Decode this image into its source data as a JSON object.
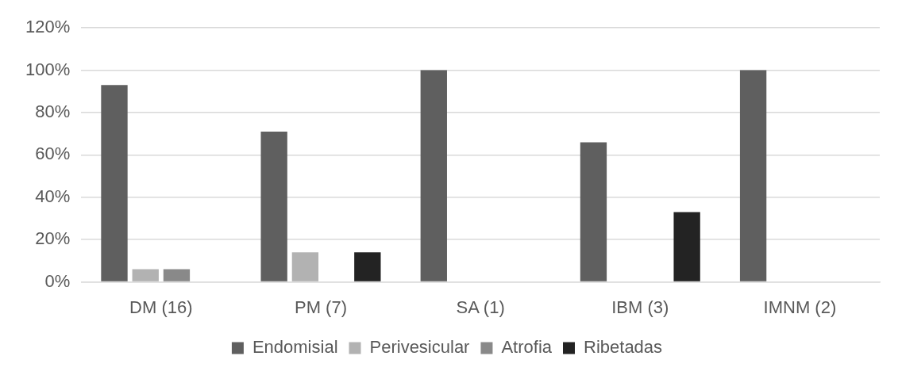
{
  "chart_data": {
    "type": "bar",
    "categories": [
      "DM (16)",
      "PM (7)",
      "SA (1)",
      "IBM (3)",
      "IMNM (2)"
    ],
    "series": [
      {
        "name": "Endomisial",
        "color": "#5f5f5f",
        "values": [
          93,
          71,
          100,
          66,
          100
        ]
      },
      {
        "name": "Perivesicular",
        "color": "#b2b2b2",
        "values": [
          6,
          14,
          0,
          0,
          0
        ]
      },
      {
        "name": "Atrofia",
        "color": "#898989",
        "values": [
          6,
          0,
          0,
          0,
          0
        ]
      },
      {
        "name": "Ribetadas",
        "color": "#232323",
        "values": [
          0,
          14,
          0,
          33,
          0
        ]
      }
    ],
    "ylim": [
      0,
      120
    ],
    "yticks": [
      {
        "value": 0,
        "label": "0%"
      },
      {
        "value": 20,
        "label": "20%"
      },
      {
        "value": 40,
        "label": "40%"
      },
      {
        "value": 60,
        "label": "60%"
      },
      {
        "value": 80,
        "label": "80%"
      },
      {
        "value": 100,
        "label": "100%"
      },
      {
        "value": 120,
        "label": "120%"
      }
    ],
    "grid": "y",
    "legend": "bottom"
  }
}
